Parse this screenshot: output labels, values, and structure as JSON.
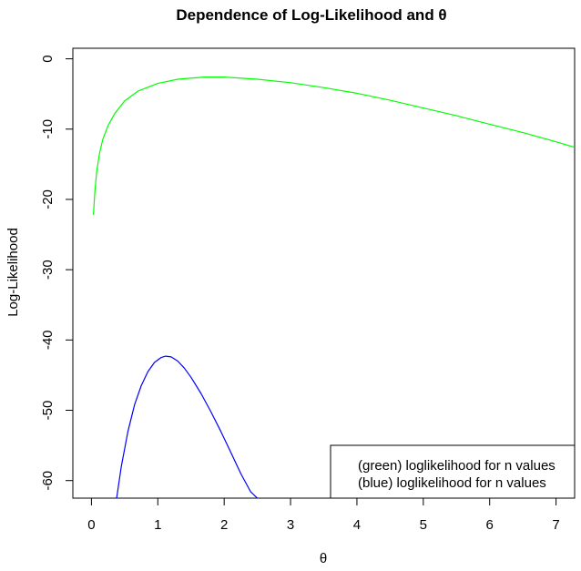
{
  "chart_data": {
    "type": "line",
    "title": "Dependence of Log-Likelihood and θ",
    "xlabel": "θ",
    "ylabel": "Log-Likelihood",
    "xlim": [
      -0.28,
      7.28
    ],
    "ylim": [
      -62.5,
      1.5
    ],
    "x_ticks": [
      0,
      1,
      2,
      3,
      4,
      5,
      6,
      7
    ],
    "y_ticks": [
      0,
      -10,
      -20,
      -30,
      -40,
      -50,
      -60
    ],
    "grid": false,
    "legend_position": "bottom-right",
    "legend": [
      "(green) loglikelihood for n values",
      "(blue) loglikelihood for n values"
    ],
    "series": [
      {
        "color": "#00ff00",
        "x": [
          0.03,
          0.05,
          0.08,
          0.12,
          0.17,
          0.25,
          0.35,
          0.5,
          0.7,
          1.0,
          1.3,
          1.7,
          2.0,
          2.5,
          3.0,
          3.5,
          4.0,
          4.5,
          5.0,
          5.5,
          6.0,
          6.5,
          7.0,
          7.28
        ],
        "y": [
          -22.2,
          -19.0,
          -16.0,
          -13.5,
          -11.5,
          -9.5,
          -7.8,
          -6.0,
          -4.6,
          -3.5,
          -2.9,
          -2.6,
          -2.6,
          -2.9,
          -3.4,
          -4.1,
          -4.9,
          -5.9,
          -7.0,
          -8.1,
          -9.3,
          -10.5,
          -11.8,
          -12.6
        ]
      },
      {
        "color": "#0000ff",
        "x": [
          0.38,
          0.45,
          0.55,
          0.65,
          0.75,
          0.85,
          0.95,
          1.05,
          1.12,
          1.2,
          1.3,
          1.4,
          1.5,
          1.65,
          1.8,
          1.95,
          2.1,
          2.25,
          2.4,
          2.5
        ],
        "y": [
          -62.5,
          -58.0,
          -53.0,
          -49.2,
          -46.5,
          -44.5,
          -43.2,
          -42.5,
          -42.3,
          -42.4,
          -43.0,
          -44.0,
          -45.3,
          -47.6,
          -50.2,
          -53.0,
          -56.0,
          -59.0,
          -61.6,
          -62.5
        ]
      }
    ]
  }
}
